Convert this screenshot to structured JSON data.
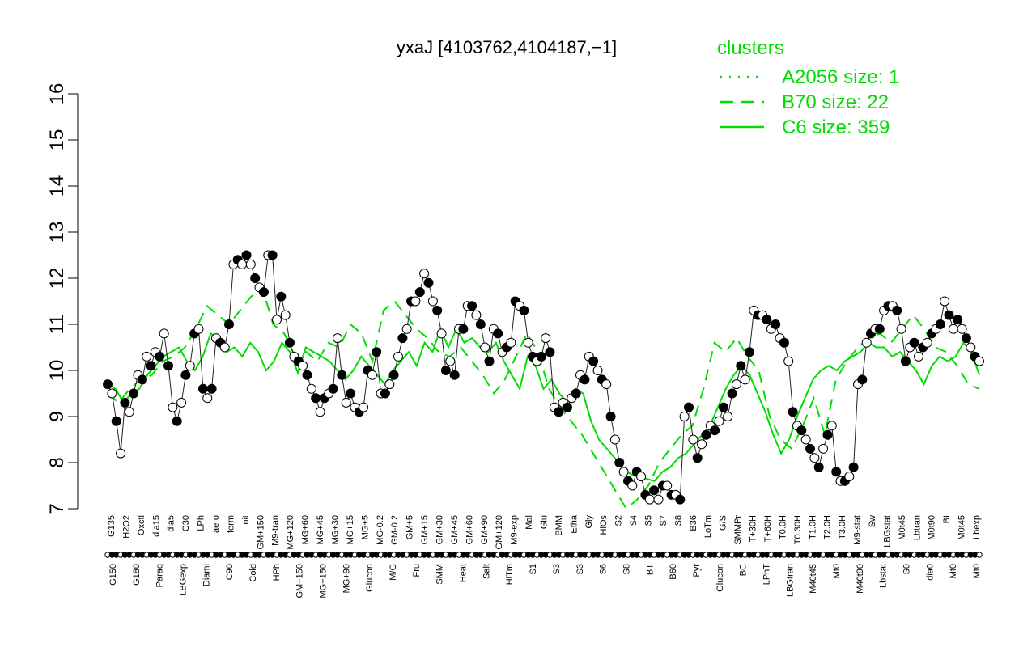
{
  "chart_data": {
    "type": "line",
    "title": "yxaJ [4103762,4104187,−1]",
    "ylim": [
      7,
      16
    ],
    "y_ticks": [
      7,
      8,
      9,
      10,
      11,
      12,
      13,
      14,
      15,
      16
    ],
    "legend": {
      "title": "clusters",
      "placement": "top-right",
      "entries": [
        {
          "label": "A2056 size: 1",
          "style": "dotted"
        },
        {
          "label": "B70 size: 22",
          "style": "dashed"
        },
        {
          "label": "C6 size: 359",
          "style": "solid"
        }
      ]
    },
    "colors": {
      "lines": "#00dd00",
      "points": "#000000",
      "axis": "#000000"
    },
    "x_labels_upper": [
      "G135",
      "H2O2",
      "Oxctl",
      "dia15",
      "dia5",
      "C30",
      "LPh",
      "aero",
      "ferm",
      "nit",
      "GM+150",
      "M9-tran",
      "MG+120",
      "MG+60",
      "MG+45",
      "MG+30",
      "MG+15",
      "MG+5",
      "MG-0.2",
      "GM-0.2",
      "GM+5",
      "GM+15",
      "GM+30",
      "GM+45",
      "GM+60",
      "GM+90",
      "GM+120",
      "M9-exp",
      "Mal",
      "Glu",
      "BMM",
      "Etha",
      "Gly",
      "HiOs",
      "S2",
      "S4",
      "S5",
      "S7",
      "S8",
      "B36",
      "LoTm",
      "G/S",
      "SMMPr",
      "T+30H",
      "T+60H",
      "T0.0H",
      "T0.30H",
      "T1.0H",
      "T2.0H",
      "T3.0H",
      "M9-stat",
      "Sw",
      "LBGstat",
      "M0t45",
      "Lbtran",
      "M0t90",
      "BI",
      "M0t45",
      "Lbexp"
    ],
    "x_labels_lower": [
      "G150",
      "G180",
      "Paraq",
      "LBGexp",
      "Diami",
      "C90",
      "Cold",
      "HPh",
      "GM+150",
      "MG+150",
      "MG+90",
      "Glucon",
      "M/G",
      "Fru",
      "SMM",
      "Heat",
      "Salt",
      "HiTm",
      "S1",
      "S3",
      "S3",
      "S6",
      "S8",
      "BT",
      "B60",
      "Pyr",
      "Glucon",
      "BC",
      "LPhT",
      "LBGtran",
      "M40t45",
      "Mt0",
      "M40t90",
      "Lbstat",
      "S0",
      "dia0",
      "Mt0",
      "Mt0"
    ],
    "series": [
      {
        "name": "C6 size: 359",
        "values": [
          9.7,
          9.6,
          9.3,
          9.5,
          9.6,
          9.9,
          10.1,
          10.3,
          10.4,
          10.5,
          10.2,
          10.0,
          10.3,
          10.8,
          10.7,
          10.4,
          10.5,
          10.3,
          10.6,
          10.4,
          10.0,
          10.2,
          10.6,
          10.4,
          9.95,
          10.5,
          10.4,
          10.3,
          10.2,
          10.0,
          9.8,
          10.0,
          10.3,
          10.1,
          9.9,
          9.7,
          10.0,
          10.2,
          10.4,
          10.1,
          10.6,
          10.4,
          10.9,
          10.5,
          10.9,
          10.6,
          10.7,
          10.5,
          10.4,
          10.6,
          10.2,
          9.9,
          9.6,
          10.3,
          10.1,
          9.6,
          9.8,
          9.5,
          9.3,
          9.6,
          9.5,
          8.9,
          8.5,
          8.3,
          8.1,
          7.9,
          7.75,
          7.7,
          7.65,
          7.6,
          7.8,
          7.9,
          8.1,
          8.2,
          8.4,
          8.6,
          8.8,
          9.2,
          9.6,
          9.9,
          10.1,
          9.9,
          9.5,
          9.1,
          8.6,
          8.2,
          8.5,
          9.0,
          9.4,
          9.8,
          10.0,
          10.1,
          10.0,
          10.2,
          10.3,
          10.4,
          10.6,
          10.5,
          10.5,
          10.3,
          10.4,
          10.2,
          10.0,
          9.7,
          10.1,
          10.3,
          10.2,
          10.3,
          10.6,
          10.4,
          9.9
        ]
      },
      {
        "name": "B70 size: 22",
        "values": [
          9.5,
          9.3,
          9.6,
          9.8,
          9.9,
          10.2,
          10.3,
          10.5,
          10.9,
          11.4,
          11.2,
          11.0,
          11.3,
          11.6,
          11.8,
          11.0,
          10.8,
          10.3,
          10.4,
          10.2,
          10.6,
          10.5,
          11.0,
          10.8,
          10.2,
          11.3,
          11.5,
          11.2,
          10.9,
          10.7,
          10.4,
          10.3,
          10.5,
          10.2,
          9.9,
          9.5,
          9.8,
          10.3,
          10.8,
          10.4,
          9.6,
          9.2,
          8.9,
          8.6,
          8.2,
          7.8,
          7.4,
          7.0,
          7.2,
          7.5,
          8.0,
          8.3,
          8.6,
          8.8,
          9.6,
          10.6,
          10.4,
          10.7,
          10.3,
          10.0,
          9.0,
          8.5,
          8.3,
          8.8,
          9.4,
          8.6,
          9.8,
          10.2,
          10.5,
          10.7,
          10.8,
          10.6,
          10.9,
          11.2,
          10.9,
          10.5,
          10.4,
          10.1,
          9.7,
          9.6
        ]
      }
    ],
    "point_values": [
      9.7,
      9.5,
      8.9,
      8.2,
      9.3,
      9.1,
      9.5,
      9.9,
      9.8,
      10.3,
      10.1,
      10.4,
      10.3,
      10.8,
      10.1,
      9.2,
      8.9,
      9.3,
      9.9,
      10.1,
      10.8,
      10.9,
      9.6,
      9.4,
      9.6,
      10.7,
      10.6,
      10.5,
      11.0,
      12.3,
      12.4,
      12.3,
      12.5,
      12.3,
      12.0,
      11.8,
      11.7,
      12.5,
      12.5,
      11.1,
      11.6,
      11.2,
      10.6,
      10.3,
      10.2,
      10.1,
      9.9,
      9.6,
      9.4,
      9.1,
      9.4,
      9.5,
      9.6,
      10.7,
      9.9,
      9.3,
      9.5,
      9.2,
      9.1,
      9.2,
      10.0,
      9.9,
      10.4,
      9.5,
      9.5,
      9.7,
      9.9,
      10.3,
      10.7,
      10.9,
      11.5,
      11.5,
      11.7,
      12.1,
      11.9,
      11.5,
      11.3,
      10.8,
      10.0,
      10.2,
      9.9,
      10.9,
      10.9,
      11.4,
      11.4,
      11.2,
      11.0,
      10.5,
      10.2,
      10.9,
      10.8,
      10.4,
      10.5,
      10.6,
      11.5,
      11.4,
      11.3,
      10.6,
      10.3,
      10.2,
      10.3,
      10.7,
      10.4,
      9.2,
      9.1,
      9.3,
      9.2,
      9.4,
      9.5,
      9.9,
      9.8,
      10.3,
      10.2,
      10.0,
      9.8,
      9.7,
      9.0,
      8.5,
      8.0,
      7.8,
      7.6,
      7.5,
      7.8,
      7.7,
      7.3,
      7.2,
      7.4,
      7.2,
      7.5,
      7.5,
      7.3,
      7.3,
      7.2,
      9.0,
      9.2,
      8.5,
      8.1,
      8.4,
      8.6,
      8.8,
      8.7,
      8.9,
      9.2,
      9.0,
      9.5,
      9.7,
      10.1,
      9.8,
      10.4,
      11.3,
      11.2,
      11.2,
      11.1,
      10.9,
      11.0,
      10.7,
      10.6,
      10.2,
      9.1,
      8.8,
      8.7,
      8.5,
      8.3,
      8.1,
      7.9,
      8.3,
      8.6,
      8.8,
      7.8,
      7.6,
      7.6,
      7.7,
      7.9,
      9.7,
      9.8,
      10.6,
      10.8,
      10.9,
      10.9,
      11.3,
      11.4,
      11.4,
      11.3,
      10.9,
      10.2,
      10.5,
      10.6,
      10.3,
      10.5,
      10.6,
      10.8,
      10.9,
      11.0,
      11.5,
      11.2,
      10.9,
      11.1,
      10.9,
      10.7,
      10.5,
      10.3,
      10.2
    ]
  }
}
